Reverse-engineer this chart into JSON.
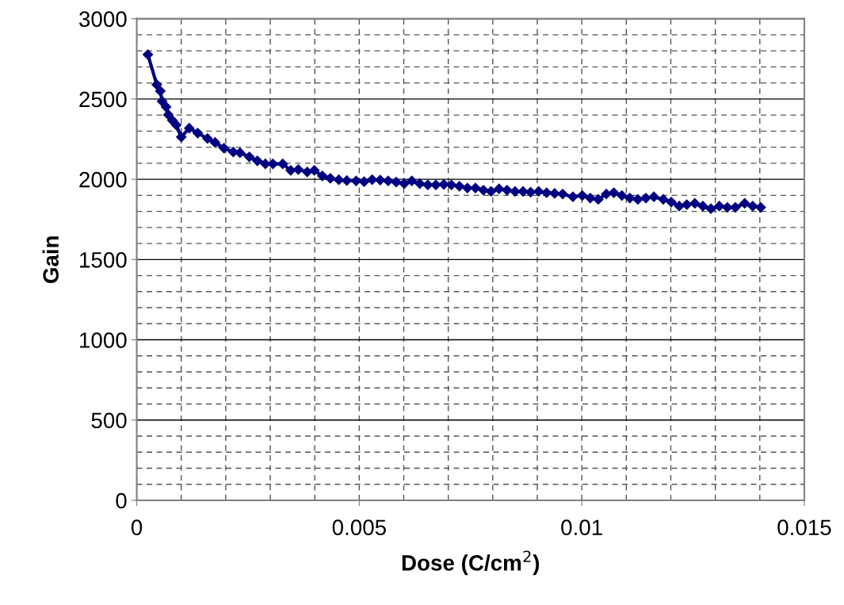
{
  "chart_data": {
    "type": "line",
    "xlabel": "Dose (C/cm$^{2}$)",
    "ylabel": "Gain",
    "marker": "diamond",
    "x": [
      0.00025,
      0.00045,
      0.00053,
      0.00057,
      0.00066,
      0.00071,
      0.0008,
      0.00089,
      0.001,
      0.00118,
      0.00137,
      0.00159,
      0.00176,
      0.00196,
      0.00217,
      0.00232,
      0.00253,
      0.00271,
      0.00289,
      0.00306,
      0.00328,
      0.00346,
      0.00363,
      0.00383,
      0.00399,
      0.00417,
      0.00435,
      0.00454,
      0.00472,
      0.00493,
      0.00511,
      0.00529,
      0.00547,
      0.00565,
      0.00583,
      0.00601,
      0.00618,
      0.00636,
      0.00654,
      0.00672,
      0.0069,
      0.00707,
      0.00725,
      0.00743,
      0.00761,
      0.00779,
      0.00796,
      0.00814,
      0.00832,
      0.0085,
      0.00868,
      0.00885,
      0.00903,
      0.00921,
      0.00939,
      0.00957,
      0.0098,
      0.01001,
      0.01019,
      0.01037,
      0.01055,
      0.01072,
      0.0109,
      0.01108,
      0.01126,
      0.01144,
      0.01162,
      0.01183,
      0.01201,
      0.01219,
      0.01236,
      0.01254,
      0.01272,
      0.0129,
      0.01309,
      0.01327,
      0.01345,
      0.01366,
      0.01384,
      0.01402
    ],
    "series": [
      {
        "color": "#000080",
        "values": [
          2777,
          2590,
          2550,
          2486,
          2451,
          2402,
          2367,
          2338,
          2263,
          2318,
          2288,
          2254,
          2229,
          2194,
          2170,
          2165,
          2140,
          2115,
          2096,
          2096,
          2096,
          2056,
          2061,
          2046,
          2056,
          2021,
          2006,
          1997,
          1992,
          1990,
          1985,
          1998,
          1995,
          1990,
          1982,
          1973,
          1990,
          1973,
          1965,
          1965,
          1968,
          1965,
          1957,
          1946,
          1946,
          1932,
          1924,
          1940,
          1932,
          1924,
          1924,
          1920,
          1924,
          1916,
          1912,
          1908,
          1891,
          1899,
          1883,
          1875,
          1908,
          1916,
          1899,
          1883,
          1875,
          1883,
          1891,
          1875,
          1858,
          1833,
          1842,
          1850,
          1833,
          1817,
          1833,
          1825,
          1825,
          1850,
          1833,
          1825
        ]
      }
    ],
    "xlim": [
      0,
      0.015
    ],
    "xticks": [
      0,
      {
        "value": 0.001,
        "label": null
      },
      {
        "value": 0.002,
        "label": null
      },
      {
        "value": 0.003,
        "label": null
      },
      {
        "value": 0.004,
        "label": null
      },
      {
        "value": 0.005,
        "label": "0.005"
      },
      {
        "value": 0.006,
        "label": null
      },
      {
        "value": 0.007,
        "label": null
      },
      {
        "value": 0.008,
        "label": null
      },
      {
        "value": 0.009,
        "label": null
      },
      {
        "value": 0.01,
        "label": "0.01"
      },
      {
        "value": 0.011,
        "label": null
      },
      {
        "value": 0.012,
        "label": null
      },
      {
        "value": 0.013,
        "label": null
      },
      {
        "value": 0.014,
        "label": null
      },
      {
        "value": 0.015,
        "label": "0.015"
      }
    ],
    "ylim": [
      0,
      3000
    ],
    "yticks": [
      0,
      {
        "value": 100,
        "label": null
      },
      {
        "value": 200,
        "label": null
      },
      {
        "value": 300,
        "label": null
      },
      {
        "value": 400,
        "label": null
      },
      500,
      {
        "value": 600,
        "label": null
      },
      {
        "value": 700,
        "label": null
      },
      {
        "value": 800,
        "label": null
      },
      {
        "value": 900,
        "label": null
      },
      1000,
      {
        "value": 1100,
        "label": null
      },
      {
        "value": 1200,
        "label": null
      },
      {
        "value": 1300,
        "label": null
      },
      {
        "value": 1400,
        "label": null
      },
      1500,
      {
        "value": 1600,
        "label": null
      },
      {
        "value": 1700,
        "label": null
      },
      {
        "value": 1800,
        "label": null
      },
      {
        "value": 1900,
        "label": null
      },
      2000,
      {
        "value": 2100,
        "label": null
      },
      {
        "value": 2200,
        "label": null
      },
      {
        "value": 2300,
        "label": null
      },
      {
        "value": 2400,
        "label": null
      },
      2500,
      {
        "value": 2600,
        "label": null
      },
      {
        "value": 2700,
        "label": null
      },
      {
        "value": 2800,
        "label": null
      },
      {
        "value": 2900,
        "label": null
      },
      3000
    ],
    "grid": true
  }
}
